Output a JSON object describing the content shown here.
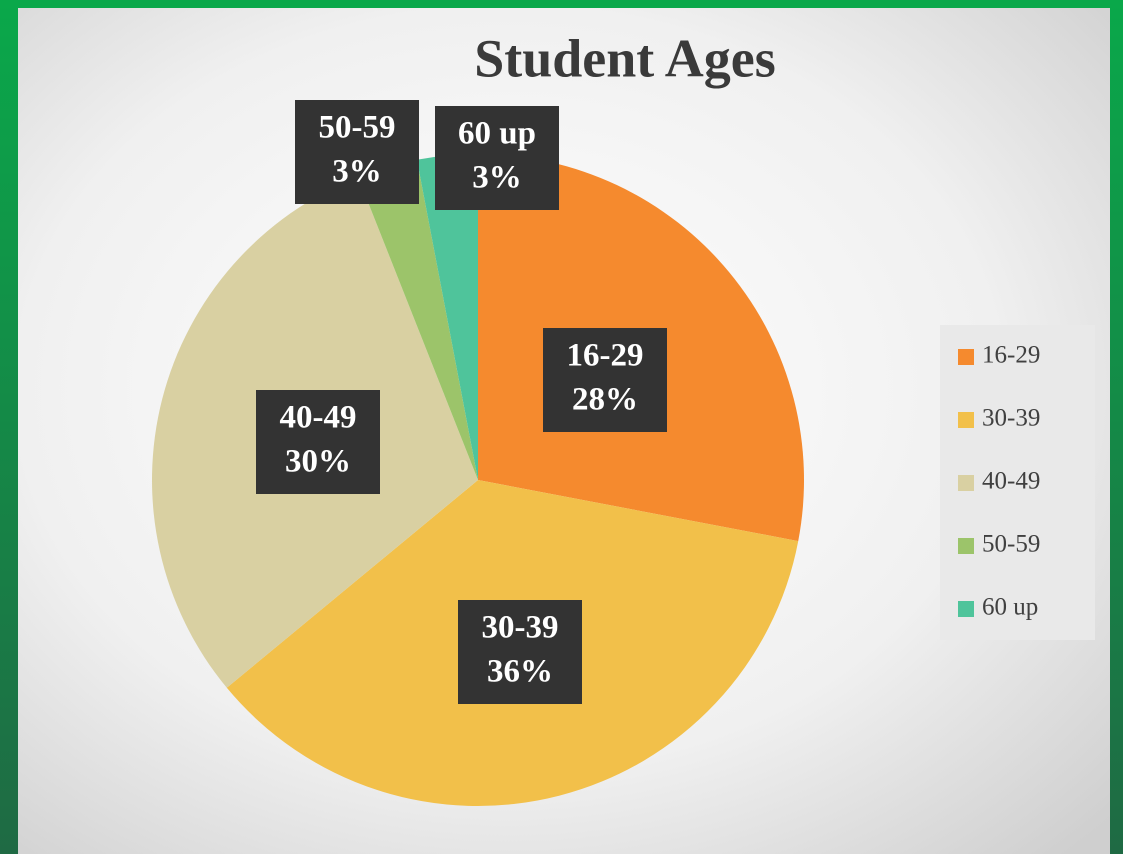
{
  "chart_data": {
    "type": "pie",
    "title": "Student Ages",
    "categories": [
      "16-29",
      "30-39",
      "40-49",
      "50-59",
      "60 up"
    ],
    "values": [
      28,
      36,
      30,
      3,
      3
    ],
    "value_labels": [
      "28%",
      "36%",
      "30%",
      "3%",
      "3%"
    ],
    "colors": [
      "#f58a2e",
      "#f2c04a",
      "#d9d0a2",
      "#9cc46a",
      "#4fc49b"
    ],
    "legend": "right"
  }
}
